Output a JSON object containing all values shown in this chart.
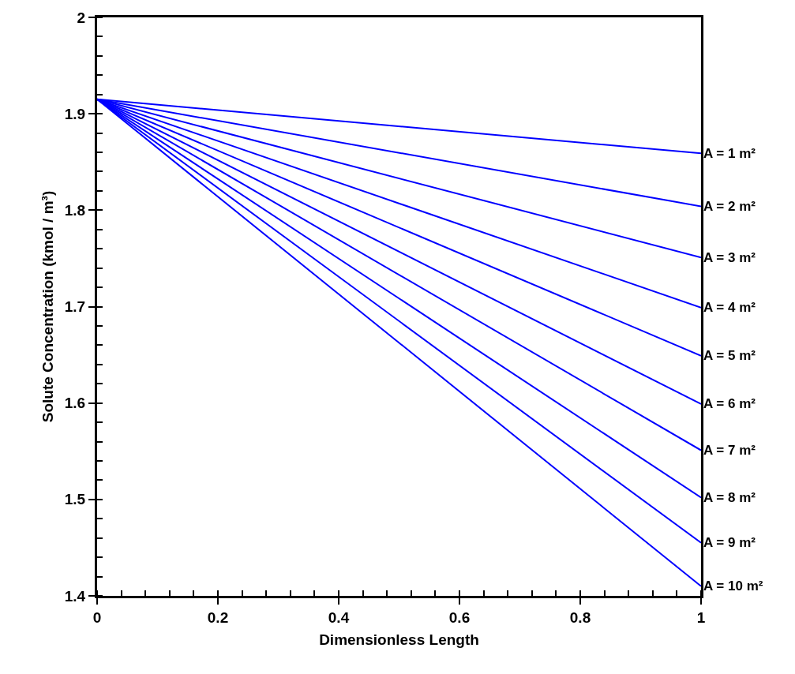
{
  "chart_data": {
    "type": "line",
    "xlabel": "Dimensionless Length",
    "ylabel": "Solute Concentration (kmol / m³)",
    "x": [
      0,
      1
    ],
    "xlim": [
      0,
      1
    ],
    "xticks": [
      0,
      0.2,
      0.4,
      0.6,
      0.8,
      1
    ],
    "ylim": [
      1.4,
      2
    ],
    "yticks": [
      1.4,
      1.5,
      1.6,
      1.7,
      1.8,
      1.9,
      2
    ],
    "marker": "none",
    "line_style": "solid",
    "series": [
      {
        "name": "A = 1 m²",
        "color": "#0000ff",
        "values": [
          1.915,
          1.859
        ]
      },
      {
        "name": "A = 2 m²",
        "color": "#0000ff",
        "values": [
          1.915,
          1.804
        ]
      },
      {
        "name": "A = 3 m²",
        "color": "#0000ff",
        "values": [
          1.915,
          1.751
        ]
      },
      {
        "name": "A = 4 m²",
        "color": "#0000ff",
        "values": [
          1.915,
          1.699
        ]
      },
      {
        "name": "A = 5 m²",
        "color": "#0000ff",
        "values": [
          1.915,
          1.649
        ]
      },
      {
        "name": "A = 6 m²",
        "color": "#0000ff",
        "values": [
          1.915,
          1.599
        ]
      },
      {
        "name": "A = 7 m²",
        "color": "#0000ff",
        "values": [
          1.915,
          1.551
        ]
      },
      {
        "name": "A = 8 m²",
        "color": "#0000ff",
        "values": [
          1.915,
          1.502
        ]
      },
      {
        "name": "A = 9 m²",
        "color": "#0000ff",
        "values": [
          1.915,
          1.455
        ]
      },
      {
        "name": "A = 10 m²",
        "color": "#0000ff",
        "values": [
          1.915,
          1.41
        ]
      }
    ]
  }
}
